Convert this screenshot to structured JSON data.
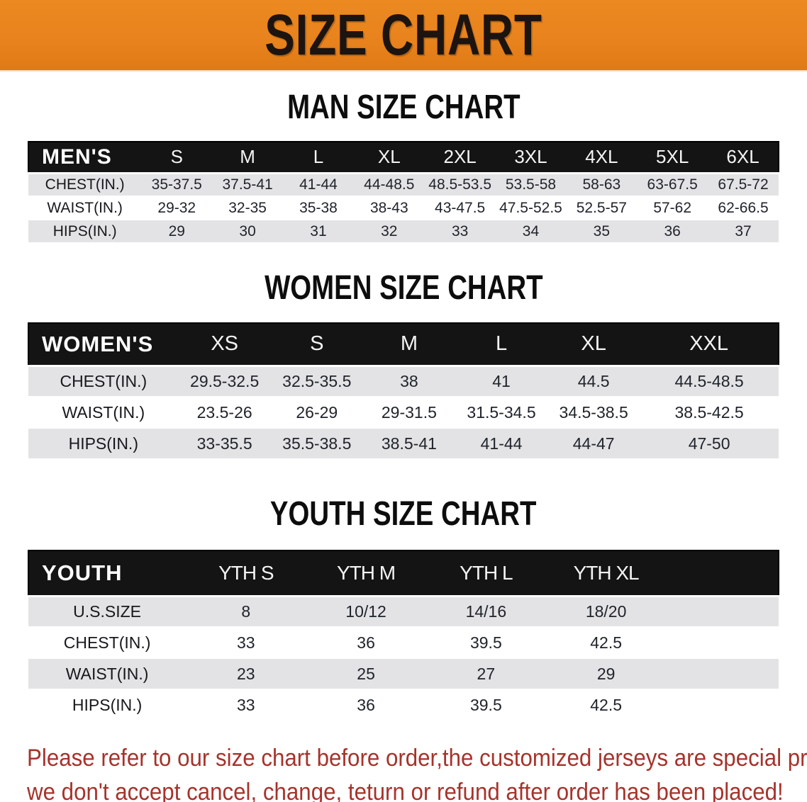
{
  "banner": {
    "title": "SIZE CHART",
    "bg_color": "#e8821d",
    "text_color": "#1c1410"
  },
  "sections": [
    {
      "title": "MAN SIZE CHART",
      "header_label": "MEN'S",
      "columns": [
        "S",
        "M",
        "L",
        "XL",
        "2XL",
        "3XL",
        "4XL",
        "5XL",
        "6XL"
      ],
      "rows": [
        {
          "label": "CHEST(IN.)",
          "values": [
            "35-37.5",
            "37.5-41",
            "41-44",
            "44-48.5",
            "48.5-53.5",
            "53.5-58",
            "58-63",
            "63-67.5",
            "67.5-72"
          ]
        },
        {
          "label": "WAIST(IN.)",
          "values": [
            "29-32",
            "32-35",
            "35-38",
            "38-43",
            "43-47.5",
            "47.5-52.5",
            "52.5-57",
            "57-62",
            "62-66.5"
          ]
        },
        {
          "label": "HIPS(IN.)",
          "values": [
            "29",
            "30",
            "31",
            "32",
            "33",
            "34",
            "35",
            "36",
            "37"
          ]
        }
      ]
    },
    {
      "title": "WOMEN SIZE CHART",
      "header_label": "WOMEN'S",
      "columns": [
        "XS",
        "S",
        "M",
        "L",
        "XL",
        "XXL"
      ],
      "rows": [
        {
          "label": "CHEST(IN.)",
          "values": [
            "29.5-32.5",
            "32.5-35.5",
            "38",
            "41",
            "44.5",
            "44.5-48.5"
          ]
        },
        {
          "label": "WAIST(IN.)",
          "values": [
            "23.5-26",
            "26-29",
            "29-31.5",
            "31.5-34.5",
            "34.5-38.5",
            "38.5-42.5"
          ]
        },
        {
          "label": "HIPS(IN.)",
          "values": [
            "33-35.5",
            "35.5-38.5",
            "38.5-41",
            "41-44",
            "44-47",
            "47-50"
          ]
        }
      ]
    },
    {
      "title": "YOUTH SIZE CHART",
      "header_label": "YOUTH",
      "columns": [
        "YTH S",
        "YTH M",
        "YTH L",
        "YTH XL"
      ],
      "rows": [
        {
          "label": "U.S.SIZE",
          "values": [
            "8",
            "10/12",
            "14/16",
            "18/20"
          ]
        },
        {
          "label": "CHEST(IN.)",
          "values": [
            "33",
            "36",
            "39.5",
            "42.5"
          ]
        },
        {
          "label": "WAIST(IN.)",
          "values": [
            "23",
            "25",
            "27",
            "29"
          ]
        },
        {
          "label": "HIPS(IN.)",
          "values": [
            "33",
            "36",
            "39.5",
            "42.5"
          ]
        }
      ]
    }
  ],
  "footer": {
    "line1": "Please refer to our size chart before order,the customized jerseys are special products,",
    "line2": "we don't accept cancel, change, teturn or refund after order has been placed!",
    "text_color": "#a6332b"
  },
  "chart_data": [
    {
      "type": "table",
      "title": "MAN SIZE CHART",
      "columns": [
        "MEN'S",
        "S",
        "M",
        "L",
        "XL",
        "2XL",
        "3XL",
        "4XL",
        "5XL",
        "6XL"
      ],
      "rows": [
        [
          "CHEST(IN.)",
          "35-37.5",
          "37.5-41",
          "41-44",
          "44-48.5",
          "48.5-53.5",
          "53.5-58",
          "58-63",
          "63-67.5",
          "67.5-72"
        ],
        [
          "WAIST(IN.)",
          "29-32",
          "32-35",
          "35-38",
          "38-43",
          "43-47.5",
          "47.5-52.5",
          "52.5-57",
          "57-62",
          "62-66.5"
        ],
        [
          "HIPS(IN.)",
          "29",
          "30",
          "31",
          "32",
          "33",
          "34",
          "35",
          "36",
          "37"
        ]
      ]
    },
    {
      "type": "table",
      "title": "WOMEN SIZE CHART",
      "columns": [
        "WOMEN'S",
        "XS",
        "S",
        "M",
        "L",
        "XL",
        "XXL"
      ],
      "rows": [
        [
          "CHEST(IN.)",
          "29.5-32.5",
          "32.5-35.5",
          "38",
          "41",
          "44.5",
          "44.5-48.5"
        ],
        [
          "WAIST(IN.)",
          "23.5-26",
          "26-29",
          "29-31.5",
          "31.5-34.5",
          "34.5-38.5",
          "38.5-42.5"
        ],
        [
          "HIPS(IN.)",
          "33-35.5",
          "35.5-38.5",
          "38.5-41",
          "41-44",
          "44-47",
          "47-50"
        ]
      ]
    },
    {
      "type": "table",
      "title": "YOUTH SIZE CHART",
      "columns": [
        "YOUTH",
        "YTH S",
        "YTH M",
        "YTH L",
        "YTH XL"
      ],
      "rows": [
        [
          "U.S.SIZE",
          "8",
          "10/12",
          "14/16",
          "18/20"
        ],
        [
          "CHEST(IN.)",
          "33",
          "36",
          "39.5",
          "42.5"
        ],
        [
          "WAIST(IN.)",
          "23",
          "25",
          "27",
          "29"
        ],
        [
          "HIPS(IN.)",
          "33",
          "36",
          "39.5",
          "42.5"
        ]
      ]
    }
  ]
}
